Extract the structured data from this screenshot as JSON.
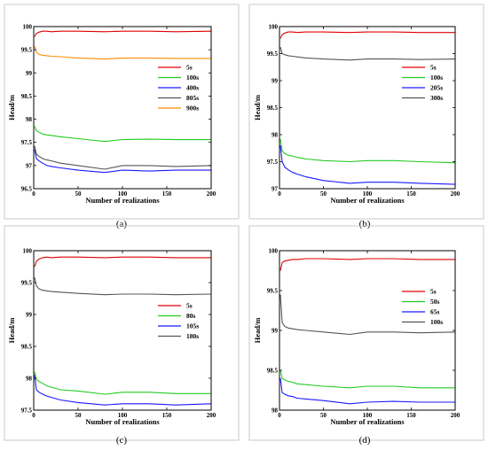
{
  "chart_data": [
    {
      "type": "line",
      "caption": "(a)",
      "xlabel": "Number of realizations",
      "ylabel": "Head/m",
      "xlim": [
        0,
        200
      ],
      "ylim": [
        96.5,
        100
      ],
      "xticks": [
        0,
        50,
        100,
        150,
        200
      ],
      "yticks": [
        96.5,
        97,
        97.5,
        98,
        98.5,
        99,
        99.5,
        100
      ],
      "ytick_labels": [
        "96.5",
        "97",
        "97.5",
        "98",
        "98.5",
        "99",
        "99.5",
        "100"
      ],
      "legend_position": "upper-right",
      "grid": false,
      "series": [
        {
          "name": "5s",
          "color": "#e00000",
          "x": [
            1,
            3,
            6,
            10,
            15,
            20,
            30,
            50,
            80,
            100,
            130,
            160,
            200
          ],
          "y": [
            99.78,
            99.85,
            99.88,
            99.9,
            99.9,
            99.89,
            99.9,
            99.9,
            99.89,
            99.9,
            99.9,
            99.89,
            99.9
          ]
        },
        {
          "name": "100s",
          "color": "#22cc22",
          "x": [
            1,
            3,
            6,
            10,
            15,
            20,
            30,
            50,
            80,
            100,
            130,
            160,
            200
          ],
          "y": [
            97.85,
            97.75,
            97.72,
            97.68,
            97.66,
            97.65,
            97.62,
            97.58,
            97.52,
            97.56,
            97.57,
            97.56,
            97.56
          ]
        },
        {
          "name": "400s",
          "color": "#1a1aff",
          "x": [
            1,
            3,
            6,
            10,
            15,
            20,
            30,
            50,
            80,
            100,
            130,
            160,
            200
          ],
          "y": [
            97.35,
            97.15,
            97.1,
            97.05,
            97.0,
            96.98,
            96.95,
            96.9,
            96.85,
            96.9,
            96.88,
            96.9,
            96.9
          ]
        },
        {
          "name": "805s",
          "color": "#555555",
          "x": [
            1,
            3,
            6,
            10,
            15,
            20,
            30,
            50,
            80,
            100,
            130,
            160,
            200
          ],
          "y": [
            97.42,
            97.25,
            97.2,
            97.15,
            97.12,
            97.1,
            97.05,
            97.0,
            96.92,
            97.0,
            97.0,
            96.98,
            97.0
          ]
        },
        {
          "name": "900s",
          "color": "#ff8c00",
          "x": [
            1,
            3,
            6,
            10,
            15,
            20,
            30,
            50,
            80,
            100,
            130,
            160,
            200
          ],
          "y": [
            99.58,
            99.45,
            99.4,
            99.38,
            99.37,
            99.36,
            99.35,
            99.32,
            99.3,
            99.32,
            99.32,
            99.31,
            99.31
          ]
        }
      ]
    },
    {
      "type": "line",
      "caption": "(b)",
      "xlabel": "Number of realizations",
      "ylabel": "Head/m",
      "xlim": [
        0,
        200
      ],
      "ylim": [
        97,
        100
      ],
      "xticks": [
        0,
        50,
        100,
        150,
        200
      ],
      "yticks": [
        97,
        97.5,
        98,
        98.5,
        99,
        99.5,
        100
      ],
      "ytick_labels": [
        "97",
        "97.5",
        "98",
        "98.5",
        "99",
        "99.5",
        "100"
      ],
      "legend_position": "upper-right",
      "grid": false,
      "series": [
        {
          "name": "5s",
          "color": "#e00000",
          "x": [
            1,
            3,
            6,
            10,
            15,
            20,
            30,
            50,
            80,
            100,
            130,
            160,
            200
          ],
          "y": [
            99.78,
            99.85,
            99.88,
            99.9,
            99.9,
            99.89,
            99.9,
            99.9,
            99.89,
            99.9,
            99.9,
            99.89,
            99.89
          ]
        },
        {
          "name": "100s",
          "color": "#22cc22",
          "x": [
            1,
            3,
            6,
            10,
            15,
            20,
            30,
            50,
            80,
            100,
            130,
            160,
            200
          ],
          "y": [
            97.92,
            97.7,
            97.65,
            97.62,
            97.6,
            97.58,
            97.55,
            97.52,
            97.5,
            97.52,
            97.52,
            97.5,
            97.48
          ]
        },
        {
          "name": "205s",
          "color": "#1a1aff",
          "x": [
            1,
            3,
            6,
            10,
            15,
            20,
            30,
            50,
            80,
            100,
            130,
            160,
            200
          ],
          "y": [
            97.8,
            97.5,
            97.4,
            97.35,
            97.3,
            97.27,
            97.22,
            97.15,
            97.1,
            97.12,
            97.12,
            97.1,
            97.08
          ]
        },
        {
          "name": "300s",
          "color": "#555555",
          "x": [
            1,
            3,
            6,
            10,
            15,
            20,
            30,
            50,
            80,
            100,
            130,
            160,
            200
          ],
          "y": [
            99.62,
            99.5,
            99.48,
            99.46,
            99.45,
            99.44,
            99.42,
            99.4,
            99.38,
            99.4,
            99.4,
            99.39,
            99.4
          ]
        }
      ]
    },
    {
      "type": "line",
      "caption": "(c)",
      "xlabel": "Number of realizations",
      "ylabel": "Head/m",
      "xlim": [
        0,
        200
      ],
      "ylim": [
        97.5,
        100
      ],
      "xticks": [
        0,
        50,
        100,
        150,
        200
      ],
      "yticks": [
        97.5,
        98,
        98.5,
        99,
        99.5,
        100
      ],
      "ytick_labels": [
        "97.5",
        "98",
        "98.5",
        "99",
        "99.5",
        "100"
      ],
      "legend_position": "right",
      "grid": false,
      "series": [
        {
          "name": "5s",
          "color": "#e00000",
          "x": [
            1,
            3,
            6,
            10,
            15,
            20,
            30,
            50,
            80,
            100,
            130,
            160,
            200
          ],
          "y": [
            99.75,
            99.83,
            99.87,
            99.89,
            99.9,
            99.89,
            99.9,
            99.9,
            99.89,
            99.9,
            99.9,
            99.89,
            99.89
          ]
        },
        {
          "name": "80s",
          "color": "#22cc22",
          "x": [
            1,
            3,
            6,
            10,
            15,
            20,
            30,
            50,
            80,
            100,
            130,
            160,
            200
          ],
          "y": [
            98.1,
            97.98,
            97.95,
            97.92,
            97.88,
            97.86,
            97.82,
            97.8,
            97.75,
            97.78,
            97.78,
            97.76,
            97.76
          ]
        },
        {
          "name": "105s",
          "color": "#1a1aff",
          "x": [
            1,
            3,
            6,
            10,
            15,
            20,
            30,
            50,
            80,
            100,
            130,
            160,
            200
          ],
          "y": [
            98.05,
            97.82,
            97.78,
            97.75,
            97.72,
            97.7,
            97.66,
            97.62,
            97.58,
            97.6,
            97.6,
            97.58,
            97.6
          ]
        },
        {
          "name": "180s",
          "color": "#555555",
          "x": [
            1,
            3,
            6,
            10,
            15,
            20,
            30,
            50,
            80,
            100,
            130,
            160,
            200
          ],
          "y": [
            99.58,
            99.45,
            99.4,
            99.38,
            99.37,
            99.36,
            99.35,
            99.33,
            99.31,
            99.32,
            99.32,
            99.31,
            99.32
          ]
        }
      ]
    },
    {
      "type": "line",
      "caption": "(d)",
      "xlabel": "Number of realizations",
      "ylabel": "Head/m",
      "xlim": [
        0,
        200
      ],
      "ylim": [
        98,
        100
      ],
      "xticks": [
        0,
        50,
        100,
        150,
        200
      ],
      "yticks": [
        98,
        98.5,
        99,
        99.5,
        100
      ],
      "ytick_labels": [
        "98",
        "98.5",
        "99",
        "99.5",
        "100"
      ],
      "legend_position": "upper-right",
      "grid": false,
      "series": [
        {
          "name": "5s",
          "color": "#e00000",
          "x": [
            1,
            3,
            6,
            10,
            15,
            20,
            30,
            50,
            80,
            100,
            130,
            160,
            200
          ],
          "y": [
            99.75,
            99.85,
            99.87,
            99.88,
            99.89,
            99.89,
            99.9,
            99.9,
            99.89,
            99.9,
            99.9,
            99.89,
            99.89
          ]
        },
        {
          "name": "50s",
          "color": "#22cc22",
          "x": [
            1,
            3,
            6,
            10,
            15,
            20,
            30,
            50,
            80,
            100,
            130,
            160,
            200
          ],
          "y": [
            98.5,
            98.4,
            98.38,
            98.36,
            98.35,
            98.33,
            98.32,
            98.3,
            98.28,
            98.3,
            98.3,
            98.28,
            98.28
          ]
        },
        {
          "name": "65s",
          "color": "#1a1aff",
          "x": [
            1,
            3,
            6,
            10,
            15,
            20,
            30,
            50,
            80,
            100,
            130,
            160,
            200
          ],
          "y": [
            98.4,
            98.22,
            98.2,
            98.18,
            98.17,
            98.15,
            98.14,
            98.12,
            98.08,
            98.1,
            98.11,
            98.1,
            98.1
          ]
        },
        {
          "name": "100s",
          "color": "#555555",
          "x": [
            1,
            3,
            6,
            10,
            15,
            20,
            30,
            50,
            80,
            100,
            130,
            160,
            200
          ],
          "y": [
            99.45,
            99.1,
            99.05,
            99.03,
            99.02,
            99.01,
            99.0,
            98.98,
            98.95,
            98.98,
            98.98,
            98.97,
            98.98
          ]
        }
      ]
    }
  ]
}
